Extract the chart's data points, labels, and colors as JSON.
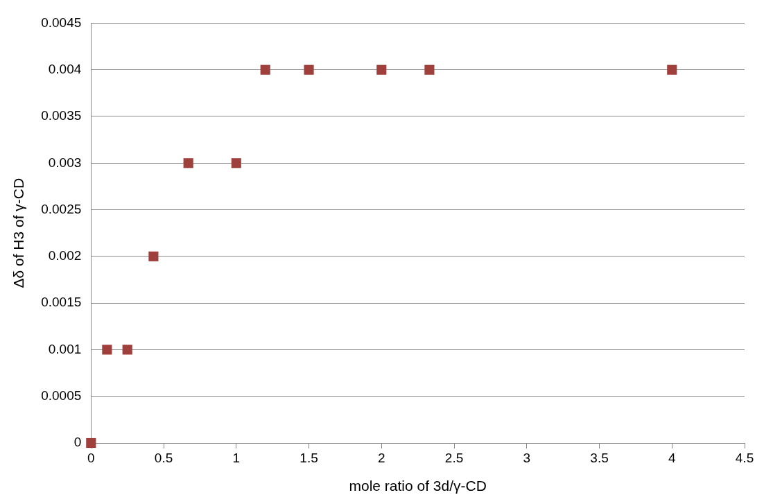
{
  "chart_data": {
    "type": "scatter",
    "xlabel": "mole ratio of 3d/γ-CD",
    "ylabel": "Δδ of H3 of γ-CD",
    "x": [
      0,
      0.11,
      0.25,
      0.43,
      0.67,
      1,
      1.2,
      1.5,
      2,
      2.33,
      4
    ],
    "series": [
      {
        "color": "#a0403d",
        "values": [
          0,
          0.001,
          0.001,
          0.002,
          0.003,
          0.003,
          0.004,
          0.004,
          0.004,
          0.004,
          0.004
        ]
      }
    ],
    "xlim": [
      0,
      4.5
    ],
    "xticks": [
      0,
      0.5,
      1,
      1.5,
      2,
      2.5,
      3,
      3.5,
      4,
      4.5
    ],
    "ylim": [
      0,
      0.0045
    ],
    "yticks": [
      0,
      0.0005,
      0.001,
      0.0015,
      0.002,
      0.0025,
      0.003,
      0.0035,
      0.004,
      0.0045
    ],
    "grid": "y",
    "legend": false,
    "marker": "square"
  }
}
